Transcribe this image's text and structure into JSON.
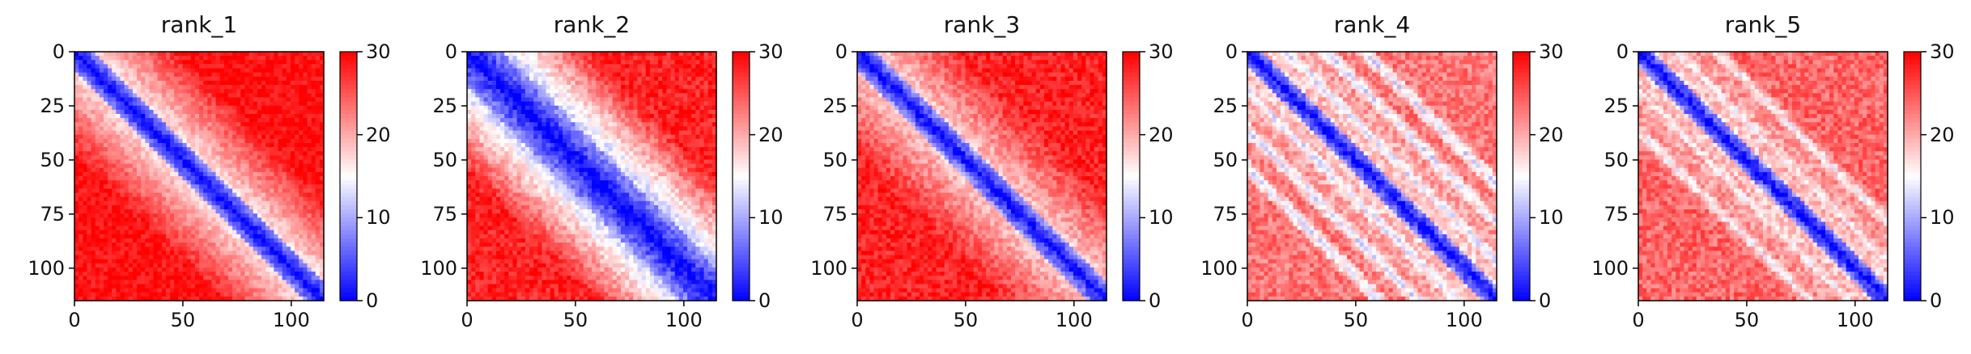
{
  "chart_data": [
    {
      "type": "heatmap",
      "title": "rank_1",
      "matrix_size": 115,
      "x_ticks": [
        "0",
        "50",
        "100"
      ],
      "y_ticks": [
        "0",
        "25",
        "50",
        "75",
        "100"
      ],
      "colorbar": {
        "min": 0,
        "max": 30,
        "ticks": [
          "0",
          "10",
          "20",
          "30"
        ],
        "colormap": "bwr",
        "low_color": "#0000ff",
        "mid_color": "#ffffff",
        "high_color": "#ff0000"
      },
      "pattern": {
        "diag_width": 9,
        "far_value": 29,
        "near_value": 17,
        "wings": [],
        "wing_value": 0,
        "noise": 2
      }
    },
    {
      "type": "heatmap",
      "title": "rank_2",
      "matrix_size": 115,
      "x_ticks": [
        "0",
        "50",
        "100"
      ],
      "y_ticks": [
        "0",
        "25",
        "50",
        "75",
        "100"
      ],
      "colorbar": {
        "min": 0,
        "max": 30,
        "ticks": [
          "0",
          "10",
          "20",
          "30"
        ],
        "colormap": "bwr",
        "low_color": "#0000ff",
        "mid_color": "#ffffff",
        "high_color": "#ff0000"
      },
      "pattern": {
        "diag_width": 16,
        "far_value": 28,
        "near_value": 12,
        "wings": [],
        "wing_value": 0,
        "noise": 2.5
      }
    },
    {
      "type": "heatmap",
      "title": "rank_3",
      "matrix_size": 115,
      "x_ticks": [
        "0",
        "50",
        "100"
      ],
      "y_ticks": [
        "0",
        "25",
        "50",
        "75",
        "100"
      ],
      "colorbar": {
        "min": 0,
        "max": 30,
        "ticks": [
          "0",
          "10",
          "20",
          "30"
        ],
        "colormap": "bwr",
        "low_color": "#0000ff",
        "mid_color": "#ffffff",
        "high_color": "#ff0000"
      },
      "pattern": {
        "diag_width": 8,
        "far_value": 28,
        "near_value": 18,
        "wings": [],
        "wing_value": 0,
        "noise": 2.5
      }
    },
    {
      "type": "heatmap",
      "title": "rank_4",
      "matrix_size": 115,
      "x_ticks": [
        "0",
        "50",
        "100"
      ],
      "y_ticks": [
        "0",
        "25",
        "50",
        "75",
        "100"
      ],
      "colorbar": {
        "min": 0,
        "max": 30,
        "ticks": [
          "0",
          "10",
          "20",
          "30"
        ],
        "colormap": "bwr",
        "low_color": "#0000ff",
        "mid_color": "#ffffff",
        "high_color": "#ff0000"
      },
      "pattern": {
        "diag_width": 7,
        "far_value": 23,
        "near_value": 18,
        "wings": [
          18,
          36,
          54
        ],
        "wing_value": 13,
        "noise": 3
      }
    },
    {
      "type": "heatmap",
      "title": "rank_5",
      "matrix_size": 115,
      "x_ticks": [
        "0",
        "50",
        "100"
      ],
      "y_ticks": [
        "0",
        "25",
        "50",
        "75",
        "100"
      ],
      "colorbar": {
        "min": 0,
        "max": 30,
        "ticks": [
          "0",
          "10",
          "20",
          "30"
        ],
        "colormap": "bwr",
        "low_color": "#0000ff",
        "mid_color": "#ffffff",
        "high_color": "#ff0000"
      },
      "pattern": {
        "diag_width": 7,
        "far_value": 24,
        "near_value": 18,
        "wings": [
          18,
          36
        ],
        "wing_value": 15,
        "noise": 3
      }
    }
  ]
}
